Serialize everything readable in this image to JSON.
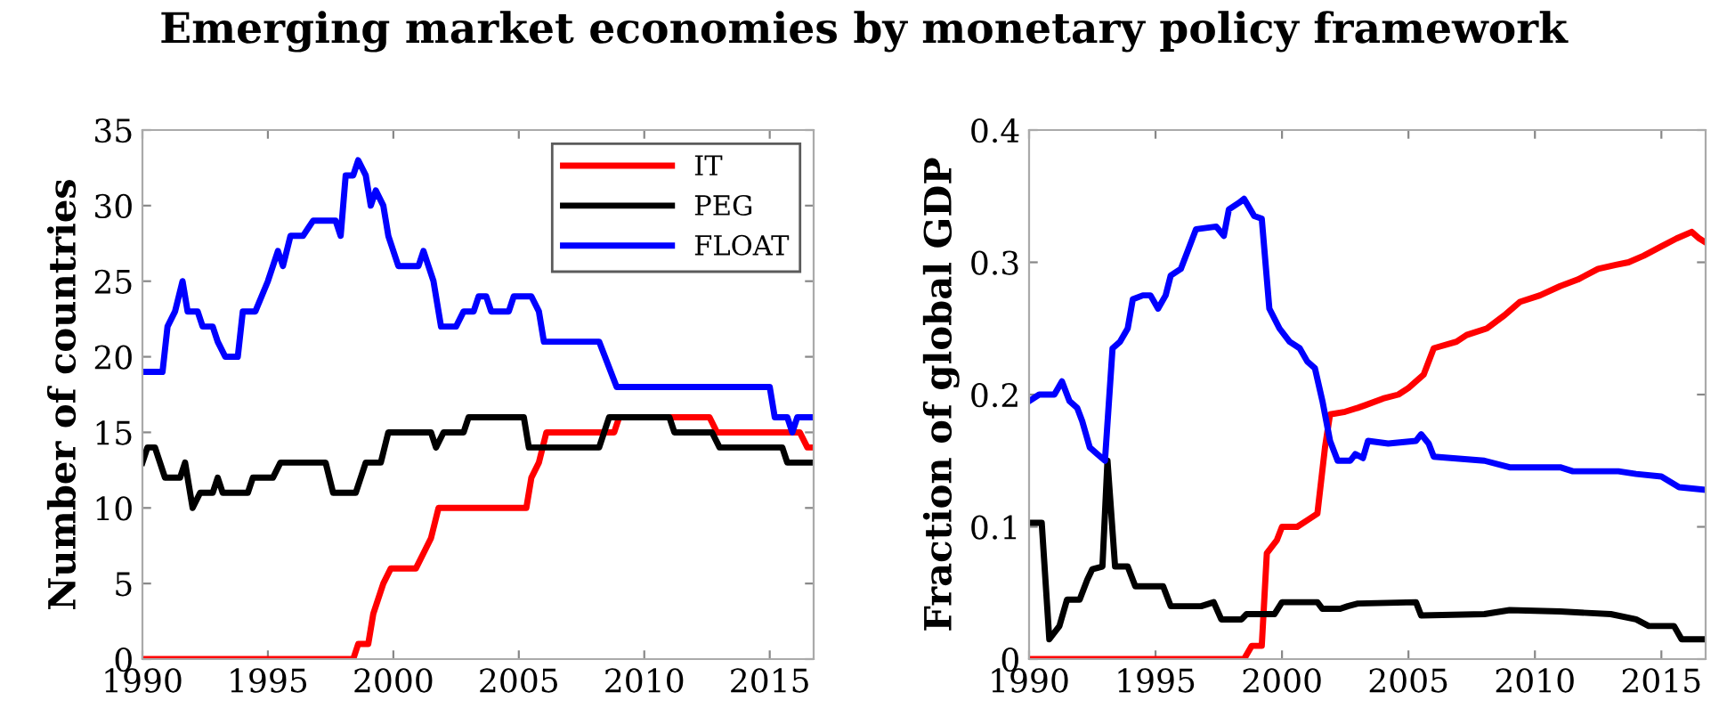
{
  "chart_data": [
    {
      "type": "line",
      "title": "Emerging market economies by monetary policy framework",
      "ylabel": "Number of countries",
      "xlim": [
        1990,
        2016.75
      ],
      "xticks": [
        1990,
        1995,
        2000,
        2005,
        2010,
        2015
      ],
      "ylim": [
        0,
        35
      ],
      "yticks": [
        0,
        5,
        10,
        15,
        20,
        25,
        30,
        35
      ],
      "grid": false,
      "legend": "top right",
      "series": [
        {
          "name": "IT",
          "color": "#ff0000",
          "x": [
            1990,
            1998.4,
            1998.6,
            1999.0,
            1999.2,
            1999.6,
            1999.9,
            2000.9,
            2001.2,
            2001.5,
            2001.8,
            2005.3,
            2005.5,
            2005.8,
            2006.1,
            2008.8,
            2009.0,
            2012.6,
            2012.9,
            2016.2,
            2016.5,
            2016.75
          ],
          "values": [
            0,
            0,
            1,
            1,
            3,
            5,
            6,
            6,
            7,
            8,
            10,
            10,
            12,
            13,
            15,
            15,
            16,
            16,
            15,
            15,
            14,
            14
          ]
        },
        {
          "name": "PEG",
          "color": "#000000",
          "x": [
            1990,
            1990.2,
            1990.5,
            1990.9,
            1991.5,
            1991.7,
            1992.0,
            1992.3,
            1992.8,
            1993.0,
            1993.2,
            1994.2,
            1994.4,
            1995.2,
            1995.5,
            1997.3,
            1997.6,
            1998.5,
            1998.9,
            1999.5,
            1999.8,
            2001.5,
            2001.7,
            2002.0,
            2002.8,
            2003.0,
            2005.2,
            2005.4,
            2008.2,
            2008.6,
            2011.0,
            2011.2,
            2012.7,
            2013.0,
            2015.5,
            2015.7,
            2016.75
          ],
          "values": [
            13,
            14,
            14,
            12,
            12,
            13,
            10,
            11,
            11,
            12,
            11,
            11,
            12,
            12,
            13,
            13,
            11,
            11,
            13,
            13,
            15,
            15,
            14,
            15,
            15,
            16,
            16,
            14,
            14,
            16,
            16,
            15,
            15,
            14,
            14,
            13,
            13
          ]
        },
        {
          "name": "FLOAT",
          "color": "#0000ff",
          "x": [
            1990,
            1990.8,
            1991.0,
            1991.3,
            1991.6,
            1991.8,
            1992.2,
            1992.4,
            1992.8,
            1993.0,
            1993.3,
            1993.8,
            1994.0,
            1994.5,
            1995.0,
            1995.4,
            1995.6,
            1995.9,
            1996.4,
            1996.8,
            1997.7,
            1997.9,
            1998.1,
            1998.4,
            1998.6,
            1998.9,
            1999.1,
            1999.3,
            1999.6,
            1999.8,
            2000.2,
            2001.0,
            2001.2,
            2001.4,
            2001.6,
            2001.9,
            2002.5,
            2002.8,
            2003.2,
            2003.4,
            2003.7,
            2003.9,
            2004.6,
            2004.8,
            2005.5,
            2005.8,
            2006.0,
            2008.2,
            2008.9,
            2015.0,
            2015.2,
            2015.7,
            2015.9,
            2016.1,
            2016.75
          ],
          "values": [
            19,
            19,
            22,
            23,
            25,
            23,
            23,
            22,
            22,
            21,
            20,
            20,
            23,
            23,
            25,
            27,
            26,
            28,
            28,
            29,
            29,
            28,
            32,
            32,
            33,
            32,
            30,
            31,
            30,
            28,
            26,
            26,
            27,
            26,
            25,
            22,
            22,
            23,
            23,
            24,
            24,
            23,
            23,
            24,
            24,
            23,
            21,
            21,
            18,
            18,
            16,
            16,
            15,
            16,
            16
          ]
        }
      ]
    },
    {
      "type": "line",
      "ylabel": "Fraction of global GDP",
      "xlim": [
        1990,
        2016.75
      ],
      "xticks": [
        1990,
        1995,
        2000,
        2005,
        2010,
        2015
      ],
      "ylim": [
        0,
        0.4
      ],
      "yticks": [
        0,
        0.1,
        0.2,
        0.3,
        0.4
      ],
      "grid": false,
      "series": [
        {
          "color": "#ff0000",
          "x": [
            1990,
            1998.5,
            1998.8,
            1999.2,
            1999.4,
            1999.8,
            2000.0,
            2000.6,
            2001.0,
            2001.4,
            2001.7,
            2001.9,
            2002.5,
            2003.0,
            2003.3,
            2004.0,
            2004.6,
            2005.0,
            2005.6,
            2006.0,
            2006.9,
            2007.3,
            2008.1,
            2008.8,
            2009.4,
            2010.2,
            2011.0,
            2011.7,
            2012.5,
            2013.2,
            2013.7,
            2014.3,
            2015.0,
            2015.6,
            2016.2,
            2016.5,
            2016.75
          ],
          "values": [
            0,
            0,
            0.01,
            0.01,
            0.08,
            0.09,
            0.1,
            0.1,
            0.105,
            0.11,
            0.16,
            0.185,
            0.187,
            0.19,
            0.192,
            0.197,
            0.2,
            0.205,
            0.215,
            0.235,
            0.24,
            0.245,
            0.25,
            0.26,
            0.27,
            0.275,
            0.282,
            0.287,
            0.295,
            0.298,
            0.3,
            0.305,
            0.312,
            0.318,
            0.323,
            0.318,
            0.315
          ]
        },
        {
          "color": "#000000",
          "x": [
            1990,
            1990.5,
            1990.8,
            1991.2,
            1991.5,
            1992.0,
            1992.3,
            1992.5,
            1992.9,
            1993.1,
            1993.4,
            1993.9,
            1994.2,
            1995.3,
            1995.6,
            1996.8,
            1997.3,
            1997.6,
            1998.4,
            1998.6,
            1999.7,
            2000.0,
            2001.4,
            2001.6,
            2002.3,
            2002.6,
            2003.0,
            2005.3,
            2005.5,
            2008.0,
            2009.0,
            2011.0,
            2013.0,
            2014.0,
            2014.5,
            2015.5,
            2015.8,
            2016.75
          ],
          "values": [
            0.103,
            0.103,
            0.015,
            0.025,
            0.045,
            0.045,
            0.06,
            0.068,
            0.07,
            0.15,
            0.07,
            0.07,
            0.055,
            0.055,
            0.04,
            0.04,
            0.043,
            0.03,
            0.03,
            0.034,
            0.034,
            0.043,
            0.043,
            0.038,
            0.038,
            0.04,
            0.042,
            0.043,
            0.033,
            0.034,
            0.037,
            0.036,
            0.034,
            0.03,
            0.025,
            0.025,
            0.015,
            0.015
          ]
        },
        {
          "color": "#0000ff",
          "x": [
            1990,
            1990.4,
            1991.0,
            1991.3,
            1991.6,
            1991.9,
            1992.1,
            1992.4,
            1992.7,
            1993.0,
            1993.3,
            1993.6,
            1993.9,
            1994.1,
            1994.5,
            1994.8,
            1995.1,
            1995.4,
            1995.6,
            1996.0,
            1996.3,
            1996.6,
            1997.4,
            1997.7,
            1997.9,
            1998.3,
            1998.5,
            1998.9,
            1999.2,
            1999.5,
            1999.9,
            2000.3,
            2000.7,
            2001.0,
            2001.3,
            2001.6,
            2001.9,
            2002.2,
            2002.7,
            2002.9,
            2003.2,
            2003.4,
            2004.2,
            2005.3,
            2005.5,
            2005.8,
            2006.0,
            2008.0,
            2009.0,
            2011.0,
            2011.5,
            2013.3,
            2014.0,
            2015.0,
            2015.7,
            2016.75
          ],
          "values": [
            0.195,
            0.2,
            0.2,
            0.21,
            0.195,
            0.19,
            0.18,
            0.16,
            0.155,
            0.15,
            0.235,
            0.24,
            0.25,
            0.272,
            0.275,
            0.275,
            0.265,
            0.275,
            0.29,
            0.295,
            0.31,
            0.325,
            0.327,
            0.32,
            0.34,
            0.345,
            0.348,
            0.335,
            0.333,
            0.265,
            0.25,
            0.24,
            0.235,
            0.225,
            0.22,
            0.195,
            0.165,
            0.15,
            0.15,
            0.155,
            0.152,
            0.165,
            0.163,
            0.165,
            0.17,
            0.163,
            0.153,
            0.15,
            0.145,
            0.145,
            0.142,
            0.142,
            0.14,
            0.138,
            0.13,
            0.128
          ]
        }
      ]
    }
  ]
}
